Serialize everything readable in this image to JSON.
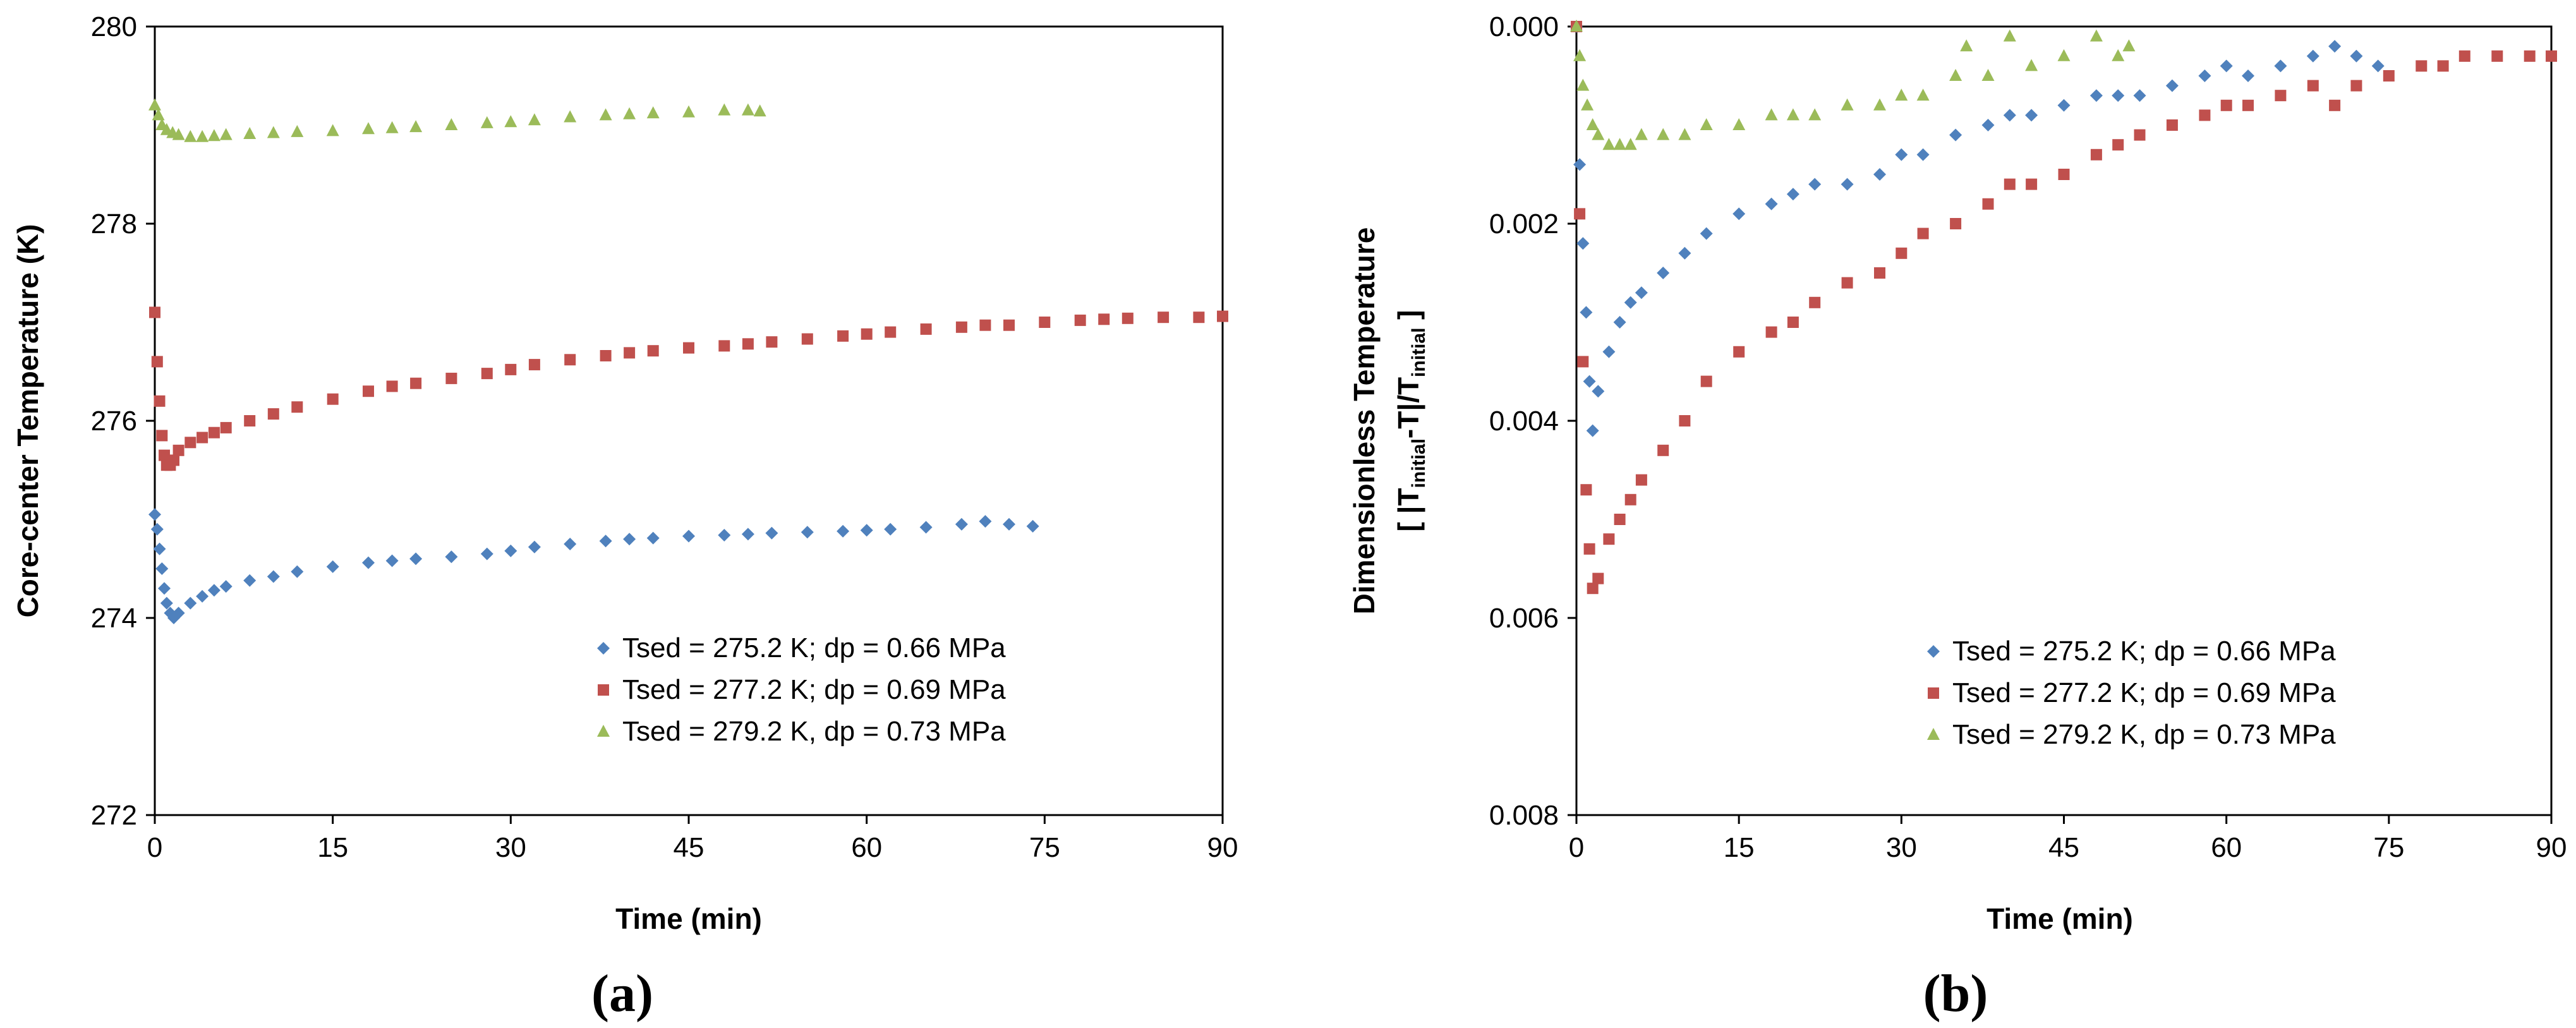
{
  "chart_data": [
    {
      "type": "scatter",
      "panel_label": "(a)",
      "xlabel": "Time (min)",
      "ylabel": "Core-center  Temperature  (K)",
      "xlim": [
        0,
        90
      ],
      "ylim": [
        272,
        280
      ],
      "y_reversed": false,
      "x_ticks": [
        "0",
        "15",
        "30",
        "45",
        "60",
        "75",
        "90"
      ],
      "y_ticks": [
        "272",
        "274",
        "276",
        "278",
        "280"
      ],
      "x_tick_values": [
        0,
        15,
        30,
        45,
        60,
        75,
        90
      ],
      "y_tick_values": [
        272,
        274,
        276,
        278,
        280
      ],
      "grid": false,
      "legend_position": "bottom-right",
      "series": [
        {
          "name": "Tsed = 275.2 K; dp = 0.66 MPa",
          "color": "#4F81BD",
          "marker": "diamond",
          "x": [
            0,
            0.2,
            0.4,
            0.6,
            0.8,
            1.0,
            1.3,
            1.6,
            2,
            3,
            4,
            5,
            6,
            8,
            10,
            12,
            15,
            18,
            20,
            22,
            25,
            28,
            30,
            32,
            35,
            38,
            40,
            42,
            45,
            48,
            50,
            52,
            55,
            58,
            60,
            62,
            65,
            68,
            70,
            72,
            74
          ],
          "y": [
            275.05,
            274.9,
            274.7,
            274.5,
            274.3,
            274.15,
            274.05,
            274.0,
            274.05,
            274.15,
            274.22,
            274.28,
            274.32,
            274.38,
            274.42,
            274.47,
            274.52,
            274.56,
            274.58,
            274.6,
            274.62,
            274.65,
            274.68,
            274.72,
            274.75,
            274.78,
            274.8,
            274.81,
            274.83,
            274.84,
            274.85,
            274.86,
            274.87,
            274.88,
            274.89,
            274.9,
            274.92,
            274.95,
            274.98,
            274.95,
            274.93
          ]
        },
        {
          "name": "Tsed = 277.2 K; dp = 0.69 MPa",
          "color": "#C0504D",
          "marker": "square",
          "x": [
            0,
            0.2,
            0.4,
            0.6,
            0.8,
            1.0,
            1.3,
            1.6,
            2,
            3,
            4,
            5,
            6,
            8,
            10,
            12,
            15,
            18,
            20,
            22,
            25,
            28,
            30,
            32,
            35,
            38,
            40,
            42,
            45,
            48,
            50,
            52,
            55,
            58,
            60,
            62,
            65,
            68,
            70,
            72,
            75,
            78,
            80,
            82,
            85,
            88,
            90
          ],
          "y": [
            277.1,
            276.6,
            276.2,
            275.85,
            275.65,
            275.55,
            275.55,
            275.6,
            275.7,
            275.78,
            275.83,
            275.88,
            275.93,
            276.0,
            276.07,
            276.14,
            276.22,
            276.3,
            276.35,
            276.38,
            276.43,
            276.48,
            276.52,
            276.57,
            276.62,
            276.66,
            276.69,
            276.71,
            276.74,
            276.76,
            276.78,
            276.8,
            276.83,
            276.86,
            276.88,
            276.9,
            276.93,
            276.95,
            276.97,
            276.97,
            277.0,
            277.02,
            277.03,
            277.04,
            277.05,
            277.05,
            277.06
          ]
        },
        {
          "name": "Tsed = 279.2 K, dp = 0.73 MPa",
          "color": "#9BBB59",
          "marker": "triangle",
          "x": [
            0,
            0.3,
            0.6,
            1.0,
            1.5,
            2,
            3,
            4,
            5,
            6,
            8,
            10,
            12,
            15,
            18,
            20,
            22,
            25,
            28,
            30,
            32,
            35,
            38,
            40,
            42,
            45,
            48,
            50,
            51
          ],
          "y": [
            279.2,
            279.1,
            279.0,
            278.95,
            278.92,
            278.9,
            278.88,
            278.88,
            278.89,
            278.9,
            278.91,
            278.92,
            278.93,
            278.94,
            278.96,
            278.97,
            278.98,
            279.0,
            279.02,
            279.03,
            279.05,
            279.08,
            279.1,
            279.11,
            279.12,
            279.13,
            279.15,
            279.15,
            279.14
          ]
        }
      ]
    },
    {
      "type": "scatter",
      "panel_label": "(b)",
      "xlabel": "Time (min)",
      "ylabel": "Dimensionless Temperature",
      "ylabel_line2": "[ |T",
      "ylabel_sub1": "initial",
      "ylabel_mid": "-T|/T",
      "ylabel_sub2": "initial",
      "ylabel_end": " ]",
      "xlim": [
        0,
        90
      ],
      "ylim": [
        0,
        0.008
      ],
      "y_reversed": true,
      "x_ticks": [
        "0",
        "15",
        "30",
        "45",
        "60",
        "75",
        "90"
      ],
      "y_ticks": [
        "0.000",
        "0.002",
        "0.004",
        "0.006",
        "0.008"
      ],
      "x_tick_values": [
        0,
        15,
        30,
        45,
        60,
        75,
        90
      ],
      "y_tick_values": [
        0,
        0.002,
        0.004,
        0.006,
        0.008
      ],
      "grid": false,
      "legend_position": "bottom-right",
      "series": [
        {
          "name": "Tsed = 275.2 K; dp = 0.66 MPa",
          "color": "#4F81BD",
          "marker": "diamond",
          "x": [
            0,
            0.3,
            0.6,
            0.9,
            1.2,
            1.5,
            2,
            3,
            4,
            5,
            6,
            8,
            10,
            12,
            15,
            18,
            20,
            22,
            25,
            28,
            30,
            32,
            35,
            38,
            40,
            42,
            45,
            48,
            50,
            52,
            55,
            58,
            60,
            62,
            65,
            68,
            70,
            72,
            74
          ],
          "y": [
            0.0,
            0.0014,
            0.0022,
            0.0029,
            0.0036,
            0.0041,
            0.0037,
            0.0033,
            0.003,
            0.0028,
            0.0027,
            0.0025,
            0.0023,
            0.0021,
            0.0019,
            0.0018,
            0.0017,
            0.0016,
            0.0016,
            0.0015,
            0.0013,
            0.0013,
            0.0011,
            0.001,
            0.0009,
            0.0009,
            0.0008,
            0.0007,
            0.0007,
            0.0007,
            0.0006,
            0.0005,
            0.0004,
            0.0005,
            0.0004,
            0.0003,
            0.0002,
            0.0003,
            0.0004
          ]
        },
        {
          "name": "Tsed = 277.2 K; dp = 0.69 MPa",
          "color": "#C0504D",
          "marker": "square",
          "x": [
            0,
            0.3,
            0.6,
            0.9,
            1.2,
            1.5,
            2,
            3,
            4,
            5,
            6,
            8,
            10,
            12,
            15,
            18,
            20,
            22,
            25,
            28,
            30,
            32,
            35,
            38,
            40,
            42,
            45,
            48,
            50,
            52,
            55,
            58,
            60,
            62,
            65,
            68,
            70,
            72,
            75,
            78,
            80,
            82,
            85,
            88,
            90
          ],
          "y": [
            0.0,
            0.0019,
            0.0034,
            0.0047,
            0.0053,
            0.0057,
            0.0056,
            0.0052,
            0.005,
            0.0048,
            0.0046,
            0.0043,
            0.004,
            0.0036,
            0.0033,
            0.0031,
            0.003,
            0.0028,
            0.0026,
            0.0025,
            0.0023,
            0.0021,
            0.002,
            0.0018,
            0.0016,
            0.0016,
            0.0015,
            0.0013,
            0.0012,
            0.0011,
            0.001,
            0.0009,
            0.0008,
            0.0008,
            0.0007,
            0.0006,
            0.0008,
            0.0006,
            0.0005,
            0.0004,
            0.0004,
            0.0003,
            0.0003,
            0.0003,
            0.0003
          ]
        },
        {
          "name": "Tsed = 279.2 K, dp = 0.73 MPa",
          "color": "#9BBB59",
          "marker": "triangle",
          "x": [
            0,
            0.3,
            0.6,
            1.0,
            1.5,
            2,
            3,
            4,
            5,
            6,
            8,
            10,
            12,
            15,
            18,
            20,
            22,
            25,
            28,
            30,
            32,
            35,
            36,
            38,
            40,
            42,
            45,
            48,
            50,
            51
          ],
          "y": [
            0.0,
            0.0003,
            0.0006,
            0.0008,
            0.001,
            0.0011,
            0.0012,
            0.0012,
            0.0012,
            0.0011,
            0.0011,
            0.0011,
            0.001,
            0.001,
            0.0009,
            0.0009,
            0.0009,
            0.0008,
            0.0008,
            0.0007,
            0.0007,
            0.0005,
            0.0002,
            0.0005,
            0.0001,
            0.0004,
            0.0003,
            0.0001,
            0.0003,
            0.0002
          ]
        }
      ]
    }
  ]
}
